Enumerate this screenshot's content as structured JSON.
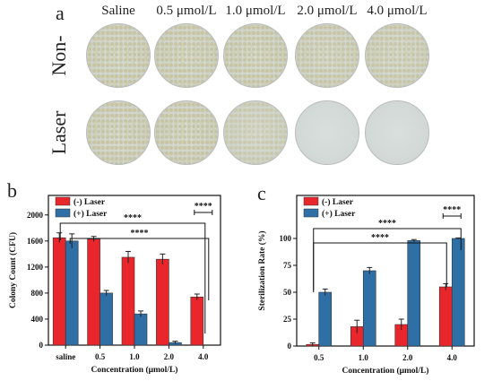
{
  "panel_a": {
    "label": "a",
    "columns": [
      "Saline",
      "0.5 μmol/L",
      "1.0 μmol/L",
      "2.0 μmol/L",
      "4.0 μmol/L"
    ],
    "rows": [
      {
        "label": "Non-",
        "dish_growth": [
          0.75,
          0.75,
          0.72,
          0.62,
          0.62
        ]
      },
      {
        "label": "Laser",
        "dish_growth": [
          0.72,
          0.72,
          0.4,
          0.05,
          0.0
        ]
      }
    ]
  },
  "colors": {
    "minus_laser": "#e8262b",
    "plus_laser": "#2e6fa6",
    "axis": "#111111"
  },
  "chart_data": [
    {
      "panel": "b",
      "type": "bar",
      "xlabel": "Concentration (μmol/L)",
      "ylabel": "Colony Count (CFU)",
      "categories": [
        "saline",
        "0.5",
        "1.0",
        "2.0",
        "4.0"
      ],
      "ylim": [
        0,
        2300
      ],
      "yticks": [
        0,
        400,
        800,
        1200,
        1600,
        2000
      ],
      "legend_position": "top-left",
      "series": [
        {
          "name": "(-) Laser",
          "values": [
            1650,
            1630,
            1350,
            1320,
            740
          ],
          "errors": [
            75,
            40,
            90,
            80,
            45
          ]
        },
        {
          "name": "(+) Laser",
          "values": [
            1600,
            800,
            480,
            40,
            0
          ],
          "errors": [
            110,
            40,
            45,
            20,
            0
          ]
        }
      ],
      "significance": [
        {
          "label": "****",
          "from": "saline",
          "to": "4.0"
        },
        {
          "label": "****",
          "from": "saline",
          "to": "4.0"
        },
        {
          "label": "****",
          "from": "4.0",
          "to": "4.0"
        }
      ]
    },
    {
      "panel": "c",
      "type": "bar",
      "xlabel": "Concentration (μmol/L)",
      "ylabel": "Sterilization Rate (%)",
      "categories": [
        "0.5",
        "1.0",
        "2.0",
        "4.0"
      ],
      "ylim": [
        0,
        140
      ],
      "yticks": [
        0,
        25,
        50,
        75,
        100
      ],
      "legend_position": "top-left",
      "series": [
        {
          "name": "(-) Laser",
          "values": [
            1.5,
            18,
            20,
            55
          ],
          "errors": [
            1.5,
            6,
            5,
            3
          ]
        },
        {
          "name": "(+) Laser",
          "values": [
            50,
            70,
            98,
            100
          ],
          "errors": [
            3,
            3,
            1,
            0.5
          ]
        }
      ],
      "significance": [
        {
          "label": "****",
          "from": "0.5",
          "to": "4.0"
        },
        {
          "label": "****",
          "from": "0.5",
          "to": "4.0"
        },
        {
          "label": "****",
          "from": "4.0",
          "to": "4.0"
        }
      ]
    }
  ]
}
